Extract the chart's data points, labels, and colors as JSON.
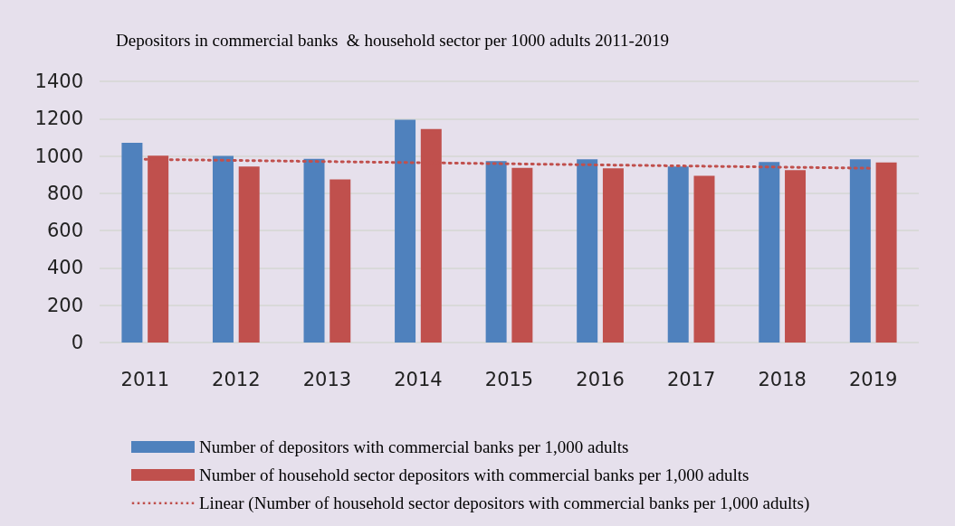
{
  "chart_data": {
    "type": "bar",
    "title": "Depositors in commercial banks  & household sector per 1000 adults 2011-2019",
    "categories": [
      "2011",
      "2012",
      "2013",
      "2014",
      "2015",
      "2016",
      "2017",
      "2018",
      "2019"
    ],
    "series": [
      {
        "name": "Number of depositors with commercial banks per 1,000 adults",
        "color": "#4f81bd",
        "values": [
          1071,
          1000,
          985,
          1194,
          973,
          982,
          943,
          968,
          982
        ]
      },
      {
        "name": "Number of household sector depositors with commercial banks per 1,000 adults",
        "color": "#c0504d",
        "values": [
          1002,
          943,
          874,
          1144,
          936,
          934,
          894,
          924,
          965
        ]
      },
      {
        "name": "Linear (Number of household sector depositors with commercial banks per 1,000 adults)",
        "type": "line",
        "color": "#c0504d",
        "values": [
          982,
          976,
          970,
          964,
          958,
          952,
          946,
          940,
          934
        ],
        "marker": "none",
        "line_style": "dotted"
      }
    ],
    "ylim": [
      0,
      1400
    ],
    "yticks": [
      0,
      200,
      400,
      600,
      800,
      1000,
      1200,
      1400
    ],
    "grid": "y",
    "legend": "bottom"
  }
}
